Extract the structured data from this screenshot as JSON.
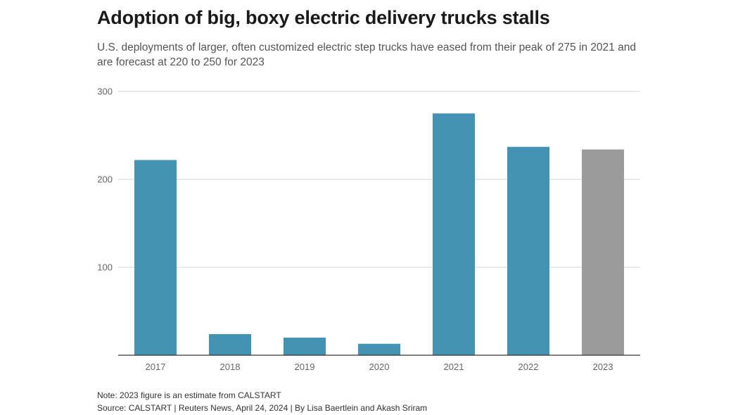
{
  "chart_data": {
    "type": "bar",
    "title": "Adoption of big, boxy electric delivery trucks stalls",
    "subtitle": "U.S. deployments of larger, often customized electric step trucks have eased from their peak of 275 in 2021 and are forecast at 220 to 250 for 2023",
    "categories": [
      "2017",
      "2018",
      "2019",
      "2020",
      "2021",
      "2022",
      "2023"
    ],
    "values": [
      222,
      24,
      20,
      13,
      275,
      237,
      234
    ],
    "estimate_categories": [
      "2023"
    ],
    "colors": {
      "actual": "#4393b5",
      "estimate": "#9b9b9b"
    },
    "xlabel": "",
    "ylabel": "",
    "ylim": [
      0,
      300
    ],
    "yticks": [
      100,
      200,
      300
    ],
    "grid": true,
    "legend": "none"
  },
  "footer": {
    "note": "Note: 2023 figure is an estimate from CALSTART",
    "source": "Source: CALSTART | Reuters News, April 24, 2024 | By Lisa Baertlein and Akash Sriram"
  }
}
